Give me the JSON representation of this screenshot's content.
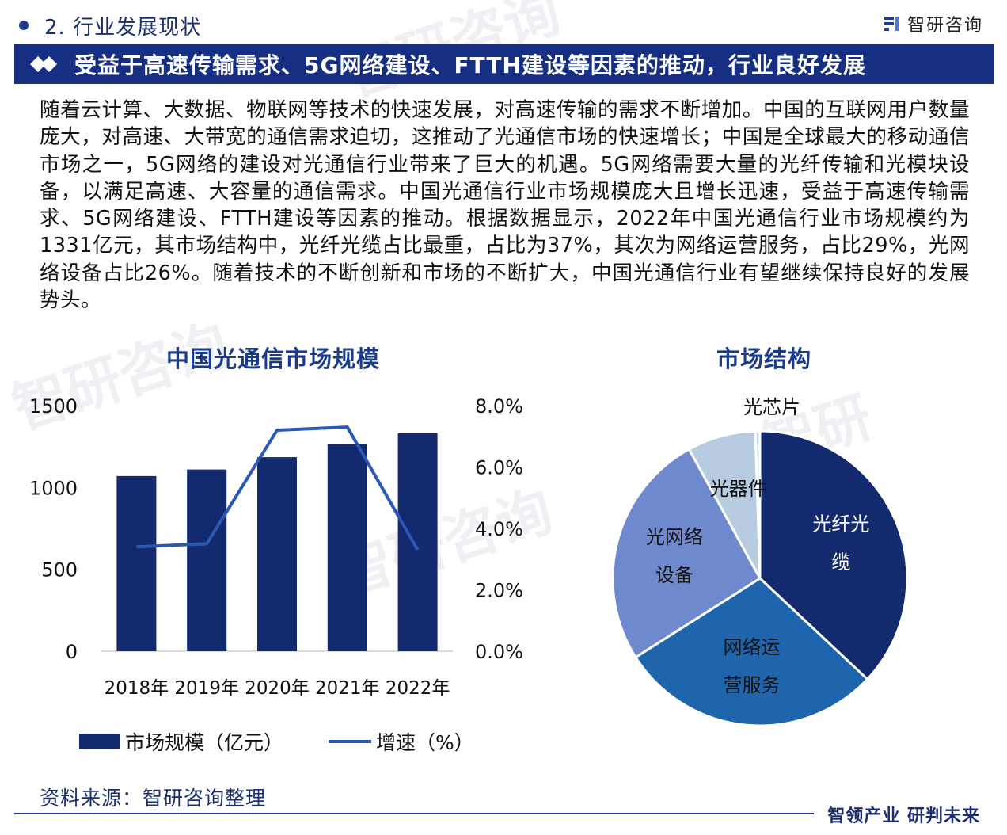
{
  "header": {
    "section_title": "2. 行业发展现状",
    "brand_name": "智研咨询",
    "banner_text": "受益于高速传输需求、5G网络建设、FTTH建设等因素的推动，行业良好发展"
  },
  "body_text": "随着云计算、大数据、物联网等技术的快速发展，对高速传输的需求不断增加。中国的互联网用户数量庞大，对高速、大带宽的通信需求迫切，这推动了光通信市场的快速增长；中国是全球最大的移动通信市场之一，5G网络的建设对光通信行业带来了巨大的机遇。5G网络需要大量的光纤传输和光模块设备，以满足高速、大容量的通信需求。中国光通信行业市场规模庞大且增长迅速，受益于高速传输需求、5G网络建设、FTTH建设等因素的推动。根据数据显示，2022年中国光通信行业市场规模约为1331亿元，其市场结构中，光纤光缆占比最重，占比为37%，其次为网络运营服务，占比29%，光网络设备占比26%。随着技术的不断创新和市场的不断扩大，中国光通信行业有望继续保持良好的发展势头。",
  "chart_data": [
    {
      "type": "bar",
      "title": "中国光通信市场规模",
      "categories": [
        "2018年",
        "2019年",
        "2020年",
        "2021年",
        "2022年"
      ],
      "series": [
        {
          "name": "市场规模（亿元）",
          "kind": "bar",
          "axis": "left",
          "values": [
            1070,
            1110,
            1185,
            1265,
            1331
          ]
        },
        {
          "name": "增速（%）",
          "kind": "line",
          "axis": "right",
          "values": [
            3.4,
            3.5,
            7.2,
            7.3,
            3.3
          ]
        }
      ],
      "y_left": {
        "ylim": [
          0,
          1500
        ],
        "ticks": [
          "0",
          "500",
          "1000",
          "1500"
        ]
      },
      "y_right": {
        "ylim": [
          0,
          8
        ],
        "ticks": [
          "0.0%",
          "2.0%",
          "4.0%",
          "6.0%",
          "8.0%"
        ]
      },
      "legend_position": "bottom",
      "colors": {
        "bar": "#142a6e",
        "line": "#2a59b5"
      }
    },
    {
      "type": "pie",
      "title": "市场结构",
      "slices": [
        {
          "label": "光纤光缆",
          "value": 37,
          "color": "#142a6e"
        },
        {
          "label": "网络运营服务",
          "value": 29,
          "color": "#1f65ad"
        },
        {
          "label": "光网络设备",
          "value": 26,
          "color": "#6f89cf"
        },
        {
          "label": "光器件",
          "value": 7.5,
          "color": "#b7cce0"
        },
        {
          "label": "光芯片",
          "value": 0.5,
          "color": "#cfdcea"
        }
      ],
      "slice_labels": [
        {
          "key": "光纤光缆",
          "lines": [
            "光纤光",
            "缆"
          ]
        },
        {
          "key": "网络运营服务",
          "lines": [
            "网络运",
            "营服务"
          ]
        },
        {
          "key": "光网络设备",
          "lines": [
            "光网络",
            "设备"
          ]
        },
        {
          "key": "光器件",
          "lines": [
            "光器件"
          ]
        },
        {
          "key": "光芯片",
          "lines": [
            "光芯片"
          ]
        }
      ]
    }
  ],
  "footer": {
    "source": "资料来源：智研咨询整理",
    "slogan": "智领产业 研判未来"
  }
}
